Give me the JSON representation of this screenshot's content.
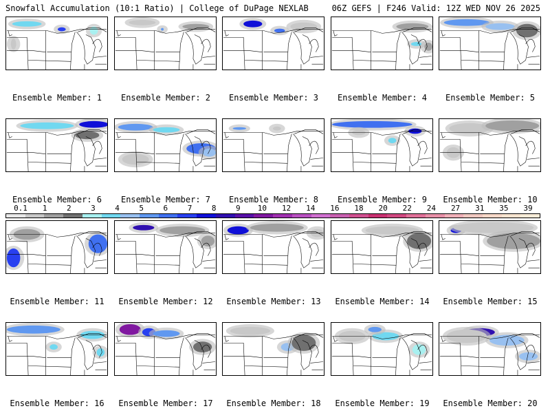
{
  "header": {
    "left": "Snowfall Accumulation (10:1 Ratio) | College of DuPage NEXLAB",
    "right": "06Z GEFS | F246 Valid: 12Z WED NOV 26 2025"
  },
  "members": [
    {
      "label": "Ensemble Member: 1"
    },
    {
      "label": "Ensemble Member: 2"
    },
    {
      "label": "Ensemble Member: 3"
    },
    {
      "label": "Ensemble Member: 4"
    },
    {
      "label": "Ensemble Member: 5"
    },
    {
      "label": "Ensemble Member: 6"
    },
    {
      "label": "Ensemble Member: 7"
    },
    {
      "label": "Ensemble Member: 8"
    },
    {
      "label": "Ensemble Member: 9"
    },
    {
      "label": "Ensemble Member: 10"
    },
    {
      "label": "Ensemble Member: 11"
    },
    {
      "label": "Ensemble Member: 12"
    },
    {
      "label": "Ensemble Member: 13"
    },
    {
      "label": "Ensemble Member: 14"
    },
    {
      "label": "Ensemble Member: 15"
    },
    {
      "label": "Ensemble Member: 16"
    },
    {
      "label": "Ensemble Member: 17"
    },
    {
      "label": "Ensemble Member: 18"
    },
    {
      "label": "Ensemble Member: 19"
    },
    {
      "label": "Ensemble Member: 20"
    }
  ],
  "colorbar": {
    "labels": [
      "0.1",
      "1",
      "2",
      "3",
      "4",
      "5",
      "6",
      "7",
      "8",
      "9",
      "10",
      "12",
      "14",
      "16",
      "18",
      "20",
      "22",
      "24",
      "27",
      "31",
      "35",
      "39"
    ],
    "colors": [
      "#e8e8e8",
      "#c8c8c8",
      "#a0a0a0",
      "#707070",
      "#a8f0f0",
      "#70d8f0",
      "#98c0f0",
      "#6098f0",
      "#4070f0",
      "#2840f0",
      "#1010d8",
      "#3010b0",
      "#5810a8",
      "#8018a0",
      "#a030b0",
      "#b850c0",
      "#d070d0",
      "#c860b0",
      "#d05090",
      "#c83070",
      "#d04880",
      "#e07098",
      "#e890a8",
      "#f0b0b8",
      "#f0c8c0",
      "#f8d8c8",
      "#f8e4d0",
      "#f8ecd8"
    ]
  }
}
